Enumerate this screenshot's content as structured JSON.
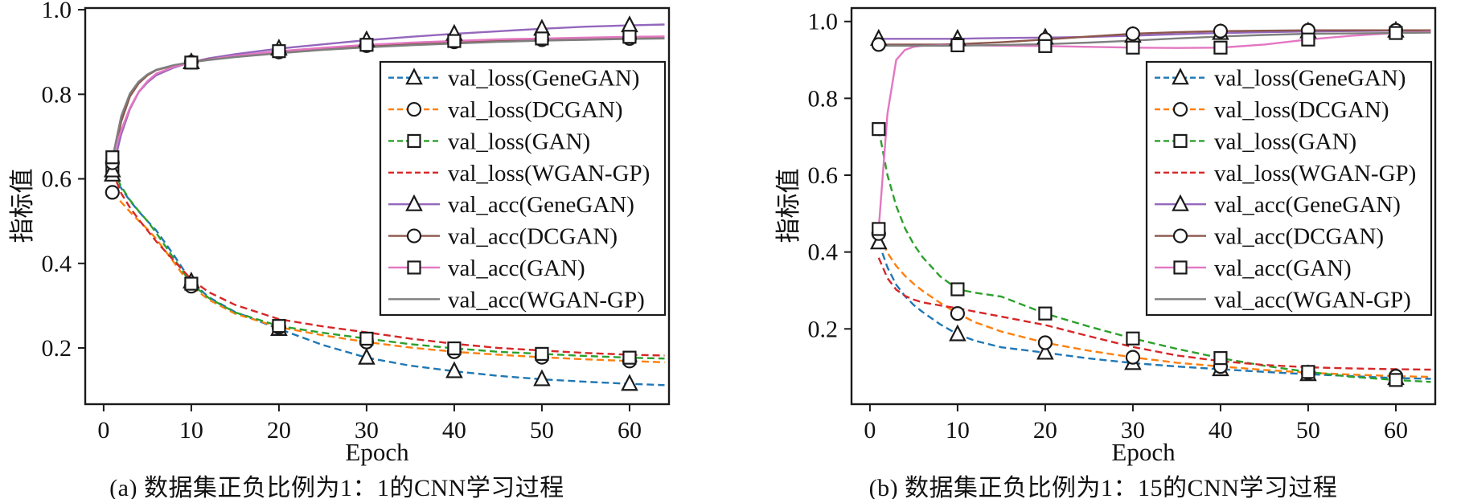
{
  "figure": {
    "xlabel": "Epoch",
    "ylabel": "指标值"
  },
  "chart_data": [
    {
      "id": "a",
      "type": "line",
      "caption": "(a) 数据集正负比例为1：1的CNN学习过程",
      "xlabel": "Epoch",
      "ylabel": "指标值",
      "xlim": [
        -2.1,
        64.5
      ],
      "ylim": [
        0.067,
        1.004
      ],
      "xticks": [
        0,
        10,
        20,
        30,
        40,
        50,
        60
      ],
      "yticks": [
        0.2,
        0.4,
        0.6,
        0.8,
        1.0
      ],
      "grid": false,
      "legend_position": "center-right",
      "marker_epochs": [
        1,
        10,
        20,
        30,
        40,
        50,
        60
      ],
      "x": [
        1,
        2,
        3,
        4,
        5,
        6,
        8,
        10,
        12,
        15,
        20,
        25,
        30,
        35,
        40,
        45,
        50,
        55,
        60,
        64
      ],
      "series": [
        {
          "name": "val_loss(GeneGAN)",
          "color": "#1f77b4",
          "style": "dashed",
          "marker": "triangle",
          "values": [
            0.61,
            0.578,
            0.548,
            0.523,
            0.5,
            0.478,
            0.42,
            0.357,
            0.32,
            0.285,
            0.245,
            0.207,
            0.177,
            0.158,
            0.145,
            0.134,
            0.126,
            0.12,
            0.115,
            0.112
          ]
        },
        {
          "name": "val_loss(DCGAN)",
          "color": "#ff7f0e",
          "style": "dashed",
          "marker": "circle",
          "values": [
            0.568,
            0.545,
            0.522,
            0.501,
            0.481,
            0.458,
            0.403,
            0.346,
            0.314,
            0.281,
            0.249,
            0.23,
            0.214,
            0.201,
            0.191,
            0.184,
            0.178,
            0.173,
            0.169,
            0.166
          ]
        },
        {
          "name": "val_loss(GAN)",
          "color": "#2ca02c",
          "style": "dashed",
          "marker": "square",
          "values": [
            0.623,
            0.582,
            0.55,
            0.524,
            0.5,
            0.472,
            0.412,
            0.352,
            0.318,
            0.284,
            0.252,
            0.236,
            0.222,
            0.209,
            0.199,
            0.191,
            0.186,
            0.181,
            0.177,
            0.175
          ]
        },
        {
          "name": "val_loss(WGAN-GP)",
          "color": "#d62728",
          "style": "dashed",
          "marker": "none",
          "values": [
            0.618,
            0.566,
            0.532,
            0.504,
            0.478,
            0.452,
            0.407,
            0.362,
            0.332,
            0.302,
            0.268,
            0.251,
            0.237,
            0.222,
            0.21,
            0.2,
            0.194,
            0.188,
            0.184,
            0.182
          ]
        },
        {
          "name": "val_acc(GeneGAN)",
          "color": "#9467bd",
          "style": "solid",
          "marker": "triangle",
          "values": [
            0.62,
            0.705,
            0.765,
            0.805,
            0.828,
            0.845,
            0.863,
            0.876,
            0.885,
            0.895,
            0.908,
            0.918,
            0.928,
            0.936,
            0.943,
            0.949,
            0.955,
            0.96,
            0.963,
            0.965
          ]
        },
        {
          "name": "val_acc(DCGAN)",
          "color": "#8c564b",
          "style": "solid",
          "marker": "circle",
          "values": [
            0.638,
            0.735,
            0.795,
            0.826,
            0.845,
            0.857,
            0.868,
            0.876,
            0.883,
            0.89,
            0.9,
            0.908,
            0.915,
            0.92,
            0.924,
            0.927,
            0.929,
            0.931,
            0.932,
            0.933
          ]
        },
        {
          "name": "val_acc(GAN)",
          "color": "#e377c2",
          "style": "solid",
          "marker": "square",
          "values": [
            0.651,
            0.715,
            0.768,
            0.806,
            0.831,
            0.849,
            0.865,
            0.875,
            0.882,
            0.891,
            0.902,
            0.91,
            0.917,
            0.922,
            0.926,
            0.93,
            0.932,
            0.934,
            0.936,
            0.937
          ]
        },
        {
          "name": "val_acc(WGAN-GP)",
          "color": "#7f7f7f",
          "style": "solid",
          "marker": "none",
          "values": [
            0.648,
            0.748,
            0.802,
            0.83,
            0.847,
            0.858,
            0.869,
            0.876,
            0.881,
            0.888,
            0.897,
            0.905,
            0.911,
            0.916,
            0.92,
            0.924,
            0.927,
            0.929,
            0.931,
            0.932
          ]
        }
      ]
    },
    {
      "id": "b",
      "type": "line",
      "caption": "(b) 数据集正负比例为1：15的CNN学习过程",
      "xlabel": "Epoch",
      "ylabel": "指标值",
      "xlim": [
        -2.1,
        64.5
      ],
      "ylim": [
        0.004,
        1.035
      ],
      "xticks": [
        0,
        10,
        20,
        30,
        40,
        50,
        60
      ],
      "yticks": [
        0.2,
        0.4,
        0.6,
        0.8,
        1.0
      ],
      "grid": false,
      "legend_position": "center-right",
      "marker_epochs": [
        1,
        10,
        20,
        30,
        40,
        50,
        60
      ],
      "x": [
        1,
        2,
        3,
        4,
        5,
        6,
        8,
        10,
        12,
        15,
        20,
        25,
        30,
        35,
        40,
        45,
        50,
        55,
        60,
        64
      ],
      "series": [
        {
          "name": "val_loss(GeneGAN)",
          "color": "#1f77b4",
          "style": "dashed",
          "marker": "triangle",
          "values": [
            0.425,
            0.36,
            0.315,
            0.285,
            0.262,
            0.244,
            0.212,
            0.186,
            0.169,
            0.152,
            0.138,
            0.123,
            0.111,
            0.102,
            0.095,
            0.088,
            0.082,
            0.077,
            0.072,
            0.07
          ]
        },
        {
          "name": "val_loss(DCGAN)",
          "color": "#ff7f0e",
          "style": "dashed",
          "marker": "circle",
          "values": [
            0.448,
            0.398,
            0.364,
            0.338,
            0.317,
            0.299,
            0.268,
            0.24,
            0.217,
            0.193,
            0.164,
            0.143,
            0.126,
            0.112,
            0.102,
            0.093,
            0.086,
            0.081,
            0.077,
            0.075
          ]
        },
        {
          "name": "val_loss(GAN)",
          "color": "#2ca02c",
          "style": "dashed",
          "marker": "square",
          "values": [
            0.72,
            0.6,
            0.52,
            0.462,
            0.42,
            0.387,
            0.337,
            0.303,
            0.294,
            0.284,
            0.24,
            0.206,
            0.175,
            0.148,
            0.124,
            0.104,
            0.088,
            0.075,
            0.067,
            0.062
          ]
        },
        {
          "name": "val_loss(WGAN-GP)",
          "color": "#d62728",
          "style": "dashed",
          "marker": "none",
          "values": [
            0.385,
            0.332,
            0.302,
            0.286,
            0.276,
            0.269,
            0.261,
            0.254,
            0.245,
            0.232,
            0.21,
            0.181,
            0.153,
            0.131,
            0.116,
            0.106,
            0.1,
            0.097,
            0.095,
            0.094
          ]
        },
        {
          "name": "val_acc(GeneGAN)",
          "color": "#9467bd",
          "style": "solid",
          "marker": "triangle",
          "values": [
            0.955,
            0.955,
            0.955,
            0.955,
            0.955,
            0.955,
            0.955,
            0.955,
            0.956,
            0.957,
            0.958,
            0.96,
            0.963,
            0.967,
            0.97,
            0.972,
            0.974,
            0.975,
            0.976,
            0.976
          ]
        },
        {
          "name": "val_acc(DCGAN)",
          "color": "#8c564b",
          "style": "solid",
          "marker": "circle",
          "values": [
            0.94,
            0.94,
            0.94,
            0.94,
            0.94,
            0.94,
            0.94,
            0.941,
            0.943,
            0.946,
            0.953,
            0.961,
            0.968,
            0.972,
            0.975,
            0.976,
            0.977,
            0.977,
            0.977,
            0.977
          ]
        },
        {
          "name": "val_acc(GAN)",
          "color": "#e377c2",
          "style": "solid",
          "marker": "square",
          "values": [
            0.46,
            0.76,
            0.9,
            0.926,
            0.934,
            0.937,
            0.938,
            0.938,
            0.938,
            0.937,
            0.936,
            0.934,
            0.932,
            0.931,
            0.932,
            0.94,
            0.953,
            0.963,
            0.97,
            0.973
          ]
        },
        {
          "name": "val_acc(WGAN-GP)",
          "color": "#7f7f7f",
          "style": "solid",
          "marker": "none",
          "values": [
            0.937,
            0.937,
            0.937,
            0.937,
            0.937,
            0.937,
            0.937,
            0.937,
            0.938,
            0.939,
            0.941,
            0.945,
            0.95,
            0.956,
            0.961,
            0.965,
            0.968,
            0.969,
            0.97,
            0.971
          ]
        }
      ]
    }
  ]
}
